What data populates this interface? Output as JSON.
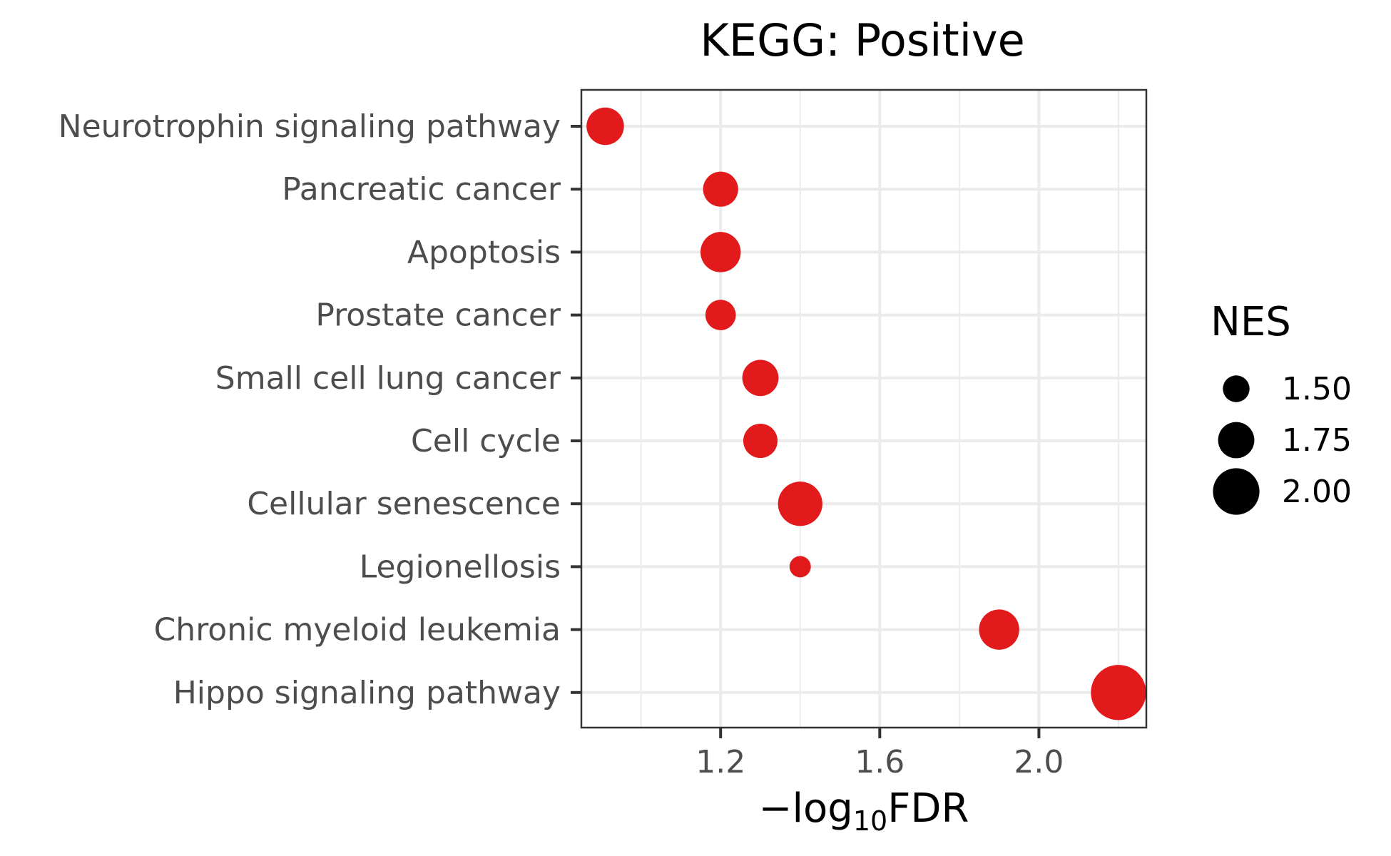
{
  "chart_data": {
    "type": "scatter",
    "title": "KEGG: Positive",
    "xlabel_prefix": "−log",
    "xlabel_sub": "10",
    "xlabel_suffix": "FDR",
    "xlim": [
      0.85,
      2.27
    ],
    "x_major_ticks": [
      1.2,
      1.6,
      2.0
    ],
    "x_tick_labels": [
      "1.2",
      "1.6",
      "2.0"
    ],
    "x_minor_ticks": [
      1.0,
      1.4,
      1.8,
      2.2
    ],
    "grid": true,
    "point_color": "#e31a1c",
    "categories": [
      "Neurotrophin signaling pathway",
      "Pancreatic cancer",
      "Apoptosis",
      "Prostate cancer",
      "Small cell lung cancer",
      "Cell cycle",
      "Cellular senescence",
      "Legionellosis",
      "Chronic myeloid leukemia",
      "Hippo signaling pathway"
    ],
    "x": [
      0.91,
      1.2,
      1.2,
      1.2,
      1.3,
      1.3,
      1.4,
      1.4,
      1.9,
      2.2
    ],
    "size_values": [
      1.78,
      1.72,
      1.85,
      1.6,
      1.75,
      1.7,
      1.95,
      1.35,
      1.85,
      2.2
    ],
    "legend": {
      "title": "NES",
      "position": "right",
      "values": [
        1.5,
        1.75,
        2.0
      ],
      "labels": [
        "1.50",
        "1.75",
        "2.00"
      ]
    }
  }
}
